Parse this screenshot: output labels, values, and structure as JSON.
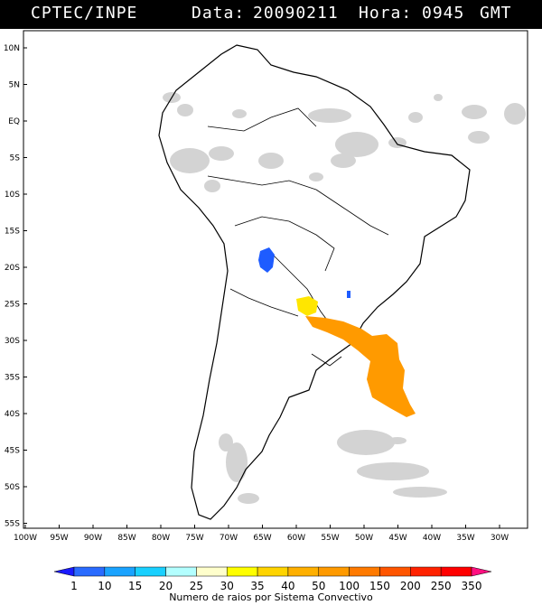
{
  "header": {
    "source": "CPTEC/INPE",
    "date_label": "Data:",
    "date": "20090211",
    "hour_label": "Hora:",
    "hour": "0945",
    "tz": "GMT"
  },
  "map": {
    "lat_labels": [
      "10N",
      "5N",
      "EQ",
      "5S",
      "10S",
      "15S",
      "20S",
      "25S",
      "30S",
      "35S",
      "40S",
      "45S",
      "50S",
      "55S"
    ],
    "lon_labels": [
      "100W",
      "95W",
      "90W",
      "85W",
      "80W",
      "75W",
      "70W",
      "65W",
      "60W",
      "55W",
      "50W",
      "45W",
      "40W",
      "35W",
      "30W"
    ],
    "colors": {
      "land_outline": "#000000",
      "cloud": "#c8c8c8",
      "blue_cell": "#1e5cff",
      "yellow_cell": "#ffe600",
      "orange_cell": "#ff9a00"
    }
  },
  "colorbar": {
    "ticks": [
      "1",
      "10",
      "15",
      "20",
      "25",
      "30",
      "35",
      "40",
      "50",
      "100",
      "150",
      "200",
      "250",
      "350"
    ],
    "colors": [
      "#1a1aff",
      "#2a6bff",
      "#1aa3ff",
      "#19d0ff",
      "#b3ffff",
      "#ffffcc",
      "#ffff00",
      "#ffd400",
      "#ffb000",
      "#ff9a00",
      "#ff7a00",
      "#ff5500",
      "#ff2200",
      "#ff0000",
      "#ff1080"
    ],
    "caption": "Numero de raios por Sistema Convectivo"
  }
}
